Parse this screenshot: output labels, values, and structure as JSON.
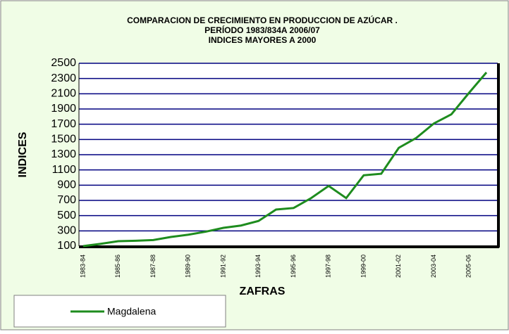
{
  "chart_data": {
    "type": "line",
    "title": [
      "COMPARACION DE CRECIMIENTO EN PRODUCCION DE AZÚCAR .",
      "PERÍODO    1983/834A 2006/07",
      "INDICES MAYORES A 2000"
    ],
    "x_label": "ZAFRAS",
    "y_label": "INDICES",
    "categories": [
      "1983-84",
      null,
      "1985-86",
      null,
      "1987-88",
      null,
      "1989-90",
      null,
      "1991-92",
      null,
      "1993-94",
      null,
      "1995-96",
      null,
      "1997-98",
      null,
      "1999-00",
      null,
      "2001-02",
      null,
      "2003-04",
      null,
      "2005-06",
      null
    ],
    "series": [
      {
        "name": "Magdalena",
        "color": "#1e8c1e",
        "values": [
          100,
          130,
          165,
          170,
          180,
          220,
          250,
          290,
          340,
          370,
          430,
          580,
          600,
          730,
          890,
          730,
          1030,
          1050,
          1390,
          1520,
          1710,
          1830,
          2110,
          2380
        ]
      }
    ],
    "ylim": [
      100,
      2500
    ],
    "yticks": [
      100,
      300,
      500,
      700,
      900,
      1100,
      1300,
      1500,
      1700,
      1900,
      2100,
      2300,
      2500
    ],
    "grid": true,
    "grid_color": "#000080",
    "legend": "bottom-left"
  }
}
